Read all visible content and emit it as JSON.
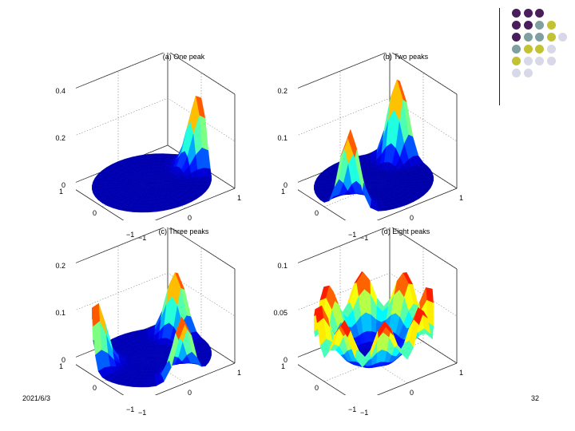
{
  "slide": {
    "date": "2021/6/3",
    "page_number": "32"
  },
  "decoration": {
    "dot_colors": {
      "purple": "#4a1d5c",
      "teal": "#7f9fa1",
      "olive": "#c3c232",
      "lavender": "#d8d8e8"
    },
    "dot_rows": [
      [
        "purple",
        "purple",
        "purple"
      ],
      [
        "purple",
        "purple",
        "teal",
        "olive"
      ],
      [
        "purple",
        "teal",
        "teal",
        "olive",
        "lavender"
      ],
      [
        "teal",
        "olive",
        "olive",
        "lavender"
      ],
      [
        "olive",
        "lavender",
        "lavender",
        "lavender"
      ],
      [
        "lavender",
        "lavender"
      ]
    ]
  },
  "chart_data": [
    {
      "type": "surface",
      "title": "(a) One peak",
      "peaks": 1,
      "zticks": [
        "0",
        "0.2",
        "0.4"
      ],
      "zlim": [
        0,
        0.4
      ],
      "peak_height": 0.32,
      "xticks": [
        "−1",
        "0",
        "1"
      ],
      "yticks": [
        "1",
        "0",
        "−1"
      ],
      "grid": true
    },
    {
      "type": "surface",
      "title": "(b) Two peaks",
      "peaks": 2,
      "zticks": [
        "0",
        "0.1",
        "0.2"
      ],
      "zlim": [
        0,
        0.2
      ],
      "peak_height": 0.18,
      "xticks": [
        "−1",
        "0",
        "1"
      ],
      "yticks": [
        "1",
        "0",
        "−1"
      ],
      "grid": true
    },
    {
      "type": "surface",
      "title": "(c) Three peaks",
      "peaks": 3,
      "zticks": [
        "0",
        "0.1",
        "0.2"
      ],
      "zlim": [
        0,
        0.2
      ],
      "peak_height": 0.14,
      "xticks": [
        "−1",
        "0",
        "1"
      ],
      "yticks": [
        "1",
        "0",
        "−1"
      ],
      "grid": true
    },
    {
      "type": "surface",
      "title": "(d) Eight peaks",
      "peaks": 8,
      "zticks": [
        "0",
        "0.05",
        "0.1"
      ],
      "zlim": [
        0,
        0.1
      ],
      "peak_height": 0.07,
      "xticks": [
        "−1",
        "0",
        "1"
      ],
      "yticks": [
        "1",
        "0",
        "−1"
      ],
      "grid": true
    }
  ]
}
